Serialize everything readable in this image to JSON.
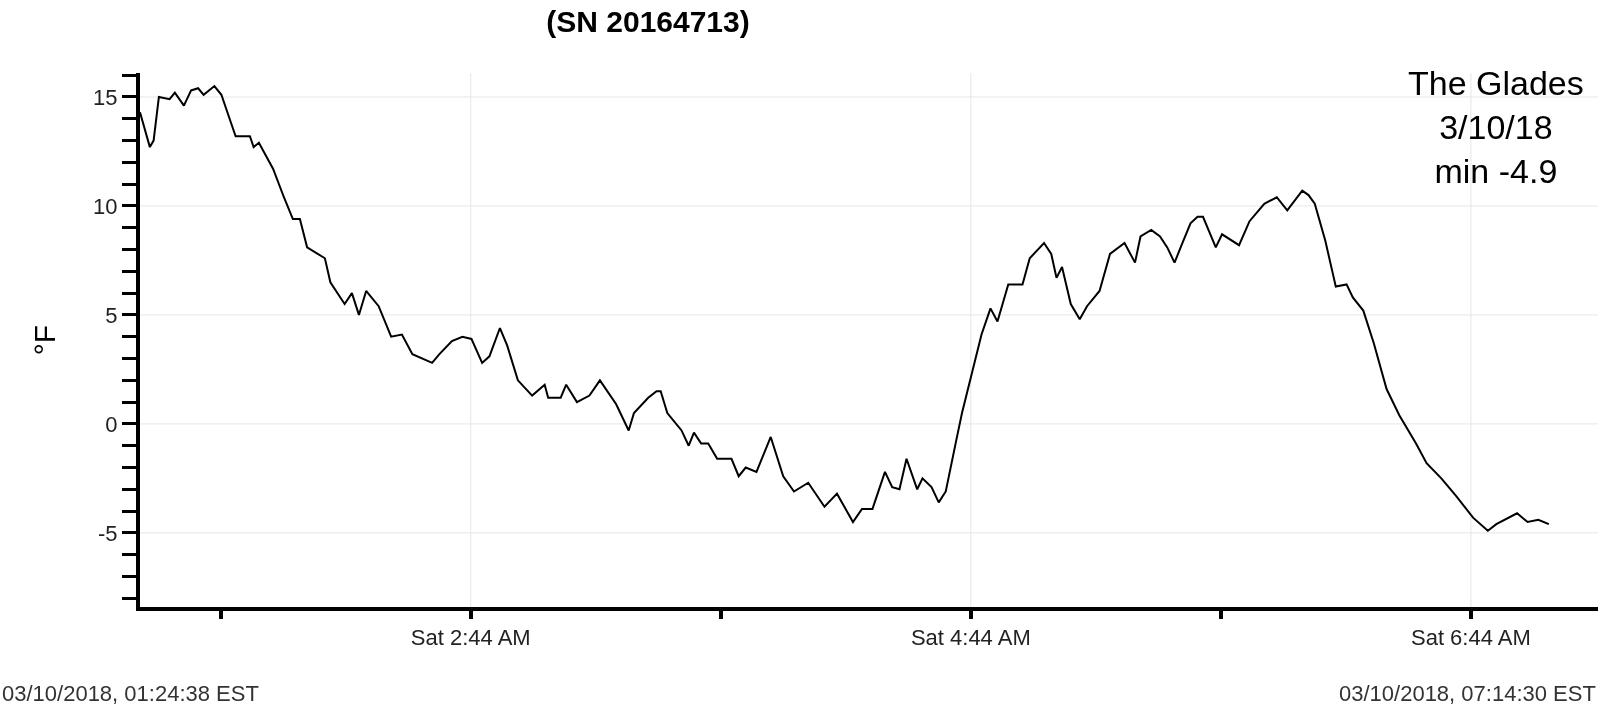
{
  "chart_data": {
    "type": "line",
    "title": "(SN 20164713)",
    "ylabel": "°F",
    "x": [
      "2018-03-10T01:24:38",
      "2018-03-10T01:27:00",
      "2018-03-10T01:27:54",
      "2018-03-10T01:29:10",
      "2018-03-10T01:31:44",
      "2018-03-10T01:33:00",
      "2018-03-10T01:35:10",
      "2018-03-10T01:36:54",
      "2018-03-10T01:38:35",
      "2018-03-10T01:39:54",
      "2018-03-10T01:42:29",
      "2018-03-10T01:44:10",
      "2018-03-10T01:46:19",
      "2018-03-10T01:47:35",
      "2018-03-10T01:51:00",
      "2018-03-10T01:51:54",
      "2018-03-10T01:53:10",
      "2018-03-10T01:56:35",
      "2018-03-10T01:59:10",
      "2018-03-10T02:01:19",
      "2018-03-10T02:03:00",
      "2018-03-10T02:04:44",
      "2018-03-10T02:09:00",
      "2018-03-10T02:10:19",
      "2018-03-10T02:13:44",
      "2018-03-10T02:15:29",
      "2018-03-10T02:17:10",
      "2018-03-10T02:18:54",
      "2018-03-10T02:21:54",
      "2018-03-10T02:24:54",
      "2018-03-10T02:27:29",
      "2018-03-10T02:30:00",
      "2018-03-10T02:34:44",
      "2018-03-10T02:36:29",
      "2018-03-10T02:39:29",
      "2018-03-10T02:42:00",
      "2018-03-10T02:44:10",
      "2018-03-10T02:46:44",
      "2018-03-10T02:48:29",
      "2018-03-10T02:51:00",
      "2018-03-10T02:52:44",
      "2018-03-10T02:55:19",
      "2018-03-10T02:58:44",
      "2018-03-10T03:01:44",
      "2018-03-10T03:02:35",
      "2018-03-10T03:05:35",
      "2018-03-10T03:06:54",
      "2018-03-10T03:09:29",
      "2018-03-10T03:12:29",
      "2018-03-10T03:15:00",
      "2018-03-10T03:18:54",
      "2018-03-10T03:21:54",
      "2018-03-10T03:23:10",
      "2018-03-10T03:26:35",
      "2018-03-10T03:28:35",
      "2018-03-10T03:29:35",
      "2018-03-10T03:31:10",
      "2018-03-10T03:34:35",
      "2018-03-10T03:36:18",
      "2018-03-10T03:37:34",
      "2018-03-10T03:39:18",
      "2018-03-10T03:40:59",
      "2018-03-10T03:43:08",
      "2018-03-10T03:46:34",
      "2018-03-10T03:48:18",
      "2018-03-10T03:49:59",
      "2018-03-10T03:52:34",
      "2018-03-10T03:55:59",
      "2018-03-10T03:58:59",
      "2018-03-10T04:01:34",
      "2018-03-10T04:04:59",
      "2018-03-10T04:08:53",
      "2018-03-10T04:11:53",
      "2018-03-10T04:15:43",
      "2018-03-10T04:17:53",
      "2018-03-10T04:20:24",
      "2018-03-10T04:23:24",
      "2018-03-10T04:25:08",
      "2018-03-10T04:26:53",
      "2018-03-10T04:28:34",
      "2018-03-10T04:31:08",
      "2018-03-10T04:32:24",
      "2018-03-10T04:34:34",
      "2018-03-10T04:36:18",
      "2018-03-10T04:37:59",
      "2018-03-10T04:40:34",
      "2018-03-10T04:41:53",
      "2018-03-10T04:43:34",
      "2018-03-10T04:46:34",
      "2018-03-10T04:48:43",
      "2018-03-10T04:50:24",
      "2018-03-10T04:52:59",
      "2018-03-10T04:56:24",
      "2018-03-10T04:58:08",
      "2018-03-10T05:01:34",
      "2018-03-10T05:03:18",
      "2018-03-10T05:04:34",
      "2018-03-10T05:05:53",
      "2018-03-10T05:07:59",
      "2018-03-10T05:10:08",
      "2018-03-10T05:11:53",
      "2018-03-10T05:14:53",
      "2018-03-10T05:17:24",
      "2018-03-10T05:20:53",
      "2018-03-10T05:23:24",
      "2018-03-10T05:24:43",
      "2018-03-10T05:27:18",
      "2018-03-10T05:29:24",
      "2018-03-10T05:31:08",
      "2018-03-10T05:32:53",
      "2018-03-10T05:34:34",
      "2018-03-10T05:36:43",
      "2018-03-10T05:38:24",
      "2018-03-10T05:39:43",
      "2018-03-10T05:42:47",
      "2018-03-10T05:44:17",
      "2018-03-10T05:48:22",
      "2018-03-10T05:50:53",
      "2018-03-10T05:54:25",
      "2018-03-10T05:57:25",
      "2018-03-10T05:59:56",
      "2018-03-10T06:03:32",
      "2018-03-10T06:05:02",
      "2018-03-10T06:06:32",
      "2018-03-10T06:09:04",
      "2018-03-10T06:11:35",
      "2018-03-10T06:14:10",
      "2018-03-10T06:15:40",
      "2018-03-10T06:18:11",
      "2018-03-10T06:20:42",
      "2018-03-10T06:23:46",
      "2018-03-10T06:26:49",
      "2018-03-10T06:30:50",
      "2018-03-10T06:33:22",
      "2018-03-10T06:36:54",
      "2018-03-10T06:40:26",
      "2018-03-10T06:44:31",
      "2018-03-10T06:48:04",
      "2018-03-10T06:50:06",
      "2018-03-10T06:55:05",
      "2018-03-10T06:57:36",
      "2018-03-10T07:00:11",
      "2018-03-10T07:02:42"
    ],
    "series": [
      {
        "color": "#000000",
        "values": [
          14.3,
          12.7,
          13.0,
          15.0,
          14.9,
          15.2,
          14.6,
          15.3,
          15.4,
          15.1,
          15.5,
          15.1,
          13.9,
          13.2,
          13.2,
          12.7,
          12.9,
          11.7,
          10.4,
          9.4,
          9.4,
          8.1,
          7.6,
          6.5,
          5.5,
          6.0,
          5.0,
          6.1,
          5.4,
          4.0,
          4.1,
          3.2,
          2.8,
          3.2,
          3.8,
          4.0,
          3.9,
          2.8,
          3.1,
          4.4,
          3.6,
          2.0,
          1.3,
          1.8,
          1.2,
          1.2,
          1.8,
          1.0,
          1.3,
          2.0,
          0.9,
          -0.3,
          0.5,
          1.2,
          1.5,
          1.5,
          0.5,
          -0.3,
          -1.0,
          -0.4,
          -0.9,
          -0.9,
          -1.6,
          -1.6,
          -2.4,
          -2.0,
          -2.2,
          -0.6,
          -2.4,
          -3.1,
          -2.7,
          -3.8,
          -3.2,
          -4.5,
          -3.9,
          -3.9,
          -2.2,
          -2.9,
          -3.0,
          -1.6,
          -3.0,
          -2.5,
          -2.9,
          -3.6,
          -3.1,
          -0.7,
          0.5,
          1.8,
          4.1,
          5.3,
          4.7,
          6.4,
          6.4,
          7.6,
          8.3,
          7.8,
          6.7,
          7.2,
          5.5,
          4.8,
          5.4,
          6.1,
          7.8,
          8.3,
          7.4,
          8.6,
          8.9,
          8.6,
          8.1,
          7.4,
          8.2,
          9.2,
          9.5,
          9.5,
          8.1,
          8.7,
          8.2,
          9.3,
          10.1,
          10.4,
          9.8,
          10.7,
          10.5,
          10.1,
          8.4,
          6.3,
          6.4,
          5.8,
          5.2,
          3.7,
          1.6,
          0.4,
          -0.9,
          -1.8,
          -2.5,
          -3.3,
          -4.3,
          -4.9,
          -4.6,
          -4.1,
          -4.5,
          -4.4,
          -4.6
        ]
      }
    ],
    "xlim": [
      "2018-03-10T01:24:38",
      "2018-03-10T07:14:30"
    ],
    "xticks": [
      {
        "value": "2018-03-10T01:44",
        "label": null
      },
      {
        "value": "2018-03-10T02:44",
        "label": "Sat 2:44 AM"
      },
      {
        "value": "2018-03-10T03:44",
        "label": null
      },
      {
        "value": "2018-03-10T04:44",
        "label": "Sat 4:44 AM"
      },
      {
        "value": "2018-03-10T05:44",
        "label": null
      },
      {
        "value": "2018-03-10T06:44",
        "label": "Sat 6:44 AM"
      }
    ],
    "ylim": [
      -8.4,
      16.1
    ],
    "yticks": [
      {
        "value": -8,
        "label": null
      },
      {
        "value": -7,
        "label": null
      },
      {
        "value": -6,
        "label": null
      },
      -5,
      {
        "value": -4,
        "label": null
      },
      {
        "value": -3,
        "label": null
      },
      {
        "value": -2,
        "label": null
      },
      {
        "value": -1,
        "label": null
      },
      0,
      {
        "value": 1,
        "label": null
      },
      {
        "value": 2,
        "label": null
      },
      {
        "value": 3,
        "label": null
      },
      {
        "value": 4,
        "label": null
      },
      5,
      {
        "value": 6,
        "label": null
      },
      {
        "value": 7,
        "label": null
      },
      {
        "value": 8,
        "label": null
      },
      {
        "value": 9,
        "label": null
      },
      10,
      {
        "value": 11,
        "label": null
      },
      {
        "value": 12,
        "label": null
      },
      {
        "value": 13,
        "label": null
      },
      {
        "value": 14,
        "label": null
      },
      15,
      {
        "value": 16,
        "label": null
      }
    ],
    "grid": true,
    "line_style": "solid",
    "marker": "none",
    "annotations": [
      "The Glades\n3/10/18\nmin -4.9",
      "03/10/2018, 01:24:38 EST",
      "03/10/2018, 07:14:30 EST"
    ]
  }
}
